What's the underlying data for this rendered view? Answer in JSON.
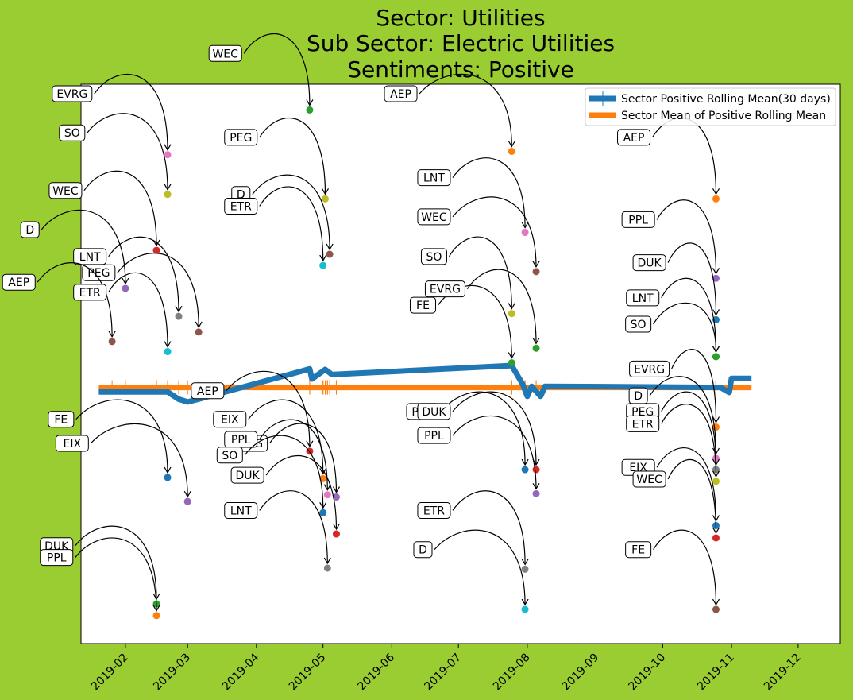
{
  "chart_data": {
    "type": "line",
    "title_lines": [
      "Sector:  Utilities",
      "Sub Sector:  Electric Utilities",
      "Sentiments:  Positive"
    ],
    "xlabel": "",
    "ylabel": "",
    "x_ticks": [
      "2019-02",
      "2019-03",
      "2019-04",
      "2019-05",
      "2019-06",
      "2019-07",
      "2019-08",
      "2019-09",
      "2019-10",
      "2019-11",
      "2019-12"
    ],
    "xlim": [
      "2019-01-12",
      "2019-12-20"
    ],
    "ylim": [
      0,
      1
    ],
    "grid": false,
    "legend_position": "upper right",
    "series": [
      {
        "name": "Sector Positive Rolling Mean(30 days)",
        "color": "#1f77b4",
        "points": [
          [
            "2019-01-20",
            0.45
          ],
          [
            "2019-02-10",
            0.45
          ],
          [
            "2019-02-20",
            0.45
          ],
          [
            "2019-02-25",
            0.437
          ],
          [
            "2019-03-01",
            0.432
          ],
          [
            "2019-03-07",
            0.438
          ],
          [
            "2019-04-25",
            0.491
          ],
          [
            "2019-04-26",
            0.473
          ],
          [
            "2019-05-02",
            0.49
          ],
          [
            "2019-05-05",
            0.481
          ],
          [
            "2019-07-25",
            0.497
          ],
          [
            "2019-07-30",
            0.463
          ],
          [
            "2019-08-01",
            0.442
          ],
          [
            "2019-08-03",
            0.46
          ],
          [
            "2019-08-07",
            0.442
          ],
          [
            "2019-08-09",
            0.46
          ],
          [
            "2019-10-27",
            0.458
          ],
          [
            "2019-10-31",
            0.449
          ],
          [
            "2019-11-01",
            0.474
          ],
          [
            "2019-11-10",
            0.474
          ]
        ]
      },
      {
        "name": "Sector Mean of Positive Rolling Mean",
        "color": "#ff7f0e",
        "points": [
          [
            "2019-01-20",
            0.458
          ],
          [
            "2019-11-10",
            0.458
          ]
        ]
      }
    ],
    "points": [
      {
        "label": "WEC",
        "x": "2019-04-25",
        "y": 0.954,
        "color": "#2ca02c",
        "tx": "2019-03-18",
        "ty": 1.055
      },
      {
        "label": "AEP",
        "x": "2019-07-25",
        "y": 0.88,
        "color": "#ff7f0e",
        "tx": "2019-06-05",
        "ty": 0.983
      },
      {
        "label": "EVRG",
        "x": "2019-02-20",
        "y": 0.874,
        "color": "#e377c2",
        "tx": "2019-01-08",
        "ty": 0.983
      },
      {
        "label": "SO",
        "x": "2019-02-20",
        "y": 0.803,
        "color": "#bcbd22",
        "tx": "2019-01-08",
        "ty": 0.913
      },
      {
        "label": "PEG",
        "x": "2019-05-02",
        "y": 0.795,
        "color": "#bcbd22",
        "tx": "2019-03-25",
        "ty": 0.905
      },
      {
        "label": "AEP",
        "x": "2019-10-25",
        "y": 0.795,
        "color": "#ff7f0e",
        "tx": "2019-09-18",
        "ty": 0.905
      },
      {
        "label": "D",
        "x": "2019-05-04",
        "y": 0.696,
        "color": "#8c564b",
        "tx": "2019-03-25",
        "ty": 0.803
      },
      {
        "label": "ETR",
        "x": "2019-05-01",
        "y": 0.676,
        "color": "#17becf",
        "tx": "2019-03-25",
        "ty": 0.782
      },
      {
        "label": "WEC",
        "x": "2019-02-15",
        "y": 0.703,
        "color": "#d62728",
        "tx": "2019-01-05",
        "ty": 0.81
      },
      {
        "label": "LNT",
        "x": "2019-07-31",
        "y": 0.735,
        "color": "#e377c2",
        "tx": "2019-06-20",
        "ty": 0.833
      },
      {
        "label": "WEC",
        "x": "2019-08-05",
        "y": 0.665,
        "color": "#8c564b",
        "tx": "2019-06-20",
        "ty": 0.763
      },
      {
        "label": "D",
        "x": "2019-02-01",
        "y": 0.635,
        "color": "#9467bd",
        "tx": "2018-12-20",
        "ty": 0.74
      },
      {
        "label": "LNT",
        "x": "2019-02-25",
        "y": 0.585,
        "color": "#7f7f7f",
        "tx": "2019-01-16",
        "ty": 0.692
      },
      {
        "label": "PEG",
        "x": "2019-03-06",
        "y": 0.557,
        "color": "#8c564b",
        "tx": "2019-01-20",
        "ty": 0.663
      },
      {
        "label": "AEP",
        "x": "2019-01-26",
        "y": 0.54,
        "color": "#8c564b",
        "tx": "2018-12-15",
        "ty": 0.646
      },
      {
        "label": "ETR",
        "x": "2019-02-20",
        "y": 0.522,
        "color": "#17becf",
        "tx": "2019-01-16",
        "ty": 0.628
      },
      {
        "label": "PPL",
        "x": "2019-10-25",
        "y": 0.653,
        "color": "#9467bd",
        "tx": "2019-09-20",
        "ty": 0.758
      },
      {
        "label": "DUK",
        "x": "2019-10-25",
        "y": 0.579,
        "color": "#1f77b4",
        "tx": "2019-09-25",
        "ty": 0.681
      },
      {
        "label": "LNT",
        "x": "2019-10-25",
        "y": 0.513,
        "color": "#2ca02c",
        "tx": "2019-09-22",
        "ty": 0.618
      },
      {
        "label": "SO",
        "x": "2019-07-25",
        "y": 0.59,
        "color": "#bcbd22",
        "tx": "2019-06-20",
        "ty": 0.692
      },
      {
        "label": "SO",
        "x": "2019-10-25",
        "y": 0.513,
        "color": "#2ca02c",
        "tx": "2019-09-20",
        "ty": 0.571
      },
      {
        "label": "FE",
        "x": "2019-07-25",
        "y": 0.502,
        "color": "#2ca02c",
        "tx": "2019-06-15",
        "ty": 0.605
      },
      {
        "label": "EVRG",
        "x": "2019-08-05",
        "y": 0.528,
        "color": "#2ca02c",
        "tx": "2019-06-25",
        "ty": 0.634
      },
      {
        "label": "EVRG",
        "x": "2019-10-25",
        "y": 0.387,
        "color": "#ff7f0e",
        "tx": "2019-09-25",
        "ty": 0.491
      },
      {
        "label": "D",
        "x": "2019-10-25",
        "y": 0.331,
        "color": "#e377c2",
        "tx": "2019-09-20",
        "ty": 0.443
      },
      {
        "label": "PEG",
        "x": "2019-10-25",
        "y": 0.311,
        "color": "#7f7f7f",
        "tx": "2019-09-22",
        "ty": 0.415
      },
      {
        "label": "ETR",
        "x": "2019-10-25",
        "y": 0.29,
        "color": "#bcbd22",
        "tx": "2019-09-22",
        "ty": 0.393
      },
      {
        "label": "EIX",
        "x": "2019-10-25",
        "y": 0.211,
        "color": "#1f77b4",
        "tx": "2019-09-20",
        "ty": 0.315
      },
      {
        "label": "WEC",
        "x": "2019-10-25",
        "y": 0.189,
        "color": "#d62728",
        "tx": "2019-09-25",
        "ty": 0.294
      },
      {
        "label": "FE",
        "x": "2019-10-25",
        "y": 0.061,
        "color": "#8c564b",
        "tx": "2019-09-20",
        "ty": 0.168
      },
      {
        "label": "PEG",
        "x": "2019-07-31",
        "y": 0.311,
        "color": "#1f77b4",
        "tx": "2019-06-15",
        "ty": 0.415
      },
      {
        "label": "DUK",
        "x": "2019-08-05",
        "y": 0.311,
        "color": "#d62728",
        "tx": "2019-06-20",
        "ty": 0.415
      },
      {
        "label": "PPL",
        "x": "2019-08-05",
        "y": 0.268,
        "color": "#9467bd",
        "tx": "2019-06-20",
        "ty": 0.372
      },
      {
        "label": "ETR",
        "x": "2019-07-31",
        "y": 0.133,
        "color": "#7f7f7f",
        "tx": "2019-06-20",
        "ty": 0.238
      },
      {
        "label": "D",
        "x": "2019-07-31",
        "y": 0.061,
        "color": "#17becf",
        "tx": "2019-06-15",
        "ty": 0.168
      },
      {
        "label": "AEP",
        "x": "2019-04-25",
        "y": 0.344,
        "color": "#d62728",
        "tx": "2019-03-10",
        "ty": 0.452
      },
      {
        "label": "EIX",
        "x": "2019-05-01",
        "y": 0.295,
        "color": "#ff7f0e",
        "tx": "2019-03-20",
        "ty": 0.401
      },
      {
        "label": "EVRG",
        "x": "2019-05-07",
        "y": 0.262,
        "color": "#9467bd",
        "tx": "2019-03-28",
        "ty": 0.358
      },
      {
        "label": "PPL",
        "x": "2019-05-03",
        "y": 0.266,
        "color": "#e377c2",
        "tx": "2019-03-25",
        "ty": 0.365
      },
      {
        "label": "SO",
        "x": "2019-05-01",
        "y": 0.234,
        "color": "#1f77b4",
        "tx": "2019-03-20",
        "ty": 0.337
      },
      {
        "label": "DUK",
        "x": "2019-05-07",
        "y": 0.196,
        "color": "#d62728",
        "tx": "2019-03-28",
        "ty": 0.301
      },
      {
        "label": "LNT",
        "x": "2019-05-03",
        "y": 0.135,
        "color": "#7f7f7f",
        "tx": "2019-03-25",
        "ty": 0.238
      },
      {
        "label": "FE",
        "x": "2019-02-20",
        "y": 0.297,
        "color": "#1f77b4",
        "tx": "2019-01-03",
        "ty": 0.401
      },
      {
        "label": "EIX",
        "x": "2019-03-01",
        "y": 0.254,
        "color": "#9467bd",
        "tx": "2019-01-08",
        "ty": 0.358
      },
      {
        "label": "DUK",
        "x": "2019-02-15",
        "y": 0.071,
        "color": "#2ca02c",
        "tx": "2019-01-01",
        "ty": 0.175
      },
      {
        "label": "PPL",
        "x": "2019-02-15",
        "y": 0.05,
        "color": "#ff7f0e",
        "tx": "2019-01-01",
        "ty": 0.154
      }
    ]
  }
}
